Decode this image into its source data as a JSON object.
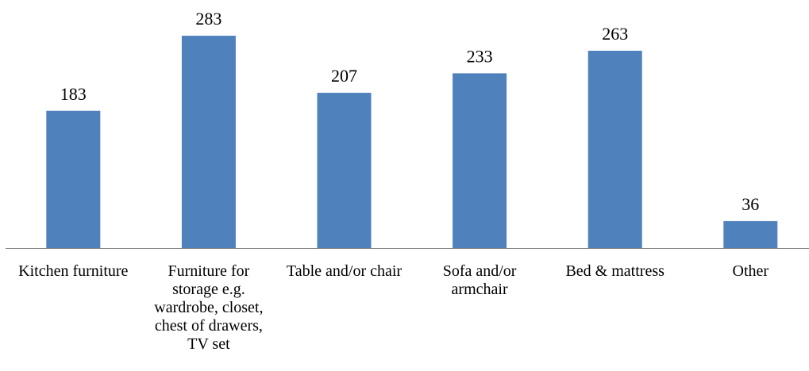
{
  "chart_data": {
    "type": "bar",
    "categories": [
      "Kitchen furniture",
      "Furniture for storage e.g. wardrobe, closet, chest of drawers, TV set",
      "Table and/or chair",
      "Sofa and/or armchair",
      "Bed & mattress",
      "Other"
    ],
    "values": [
      183,
      283,
      207,
      233,
      263,
      36
    ],
    "color": "#4f81bd",
    "ylim": [
      0,
      300
    ]
  }
}
